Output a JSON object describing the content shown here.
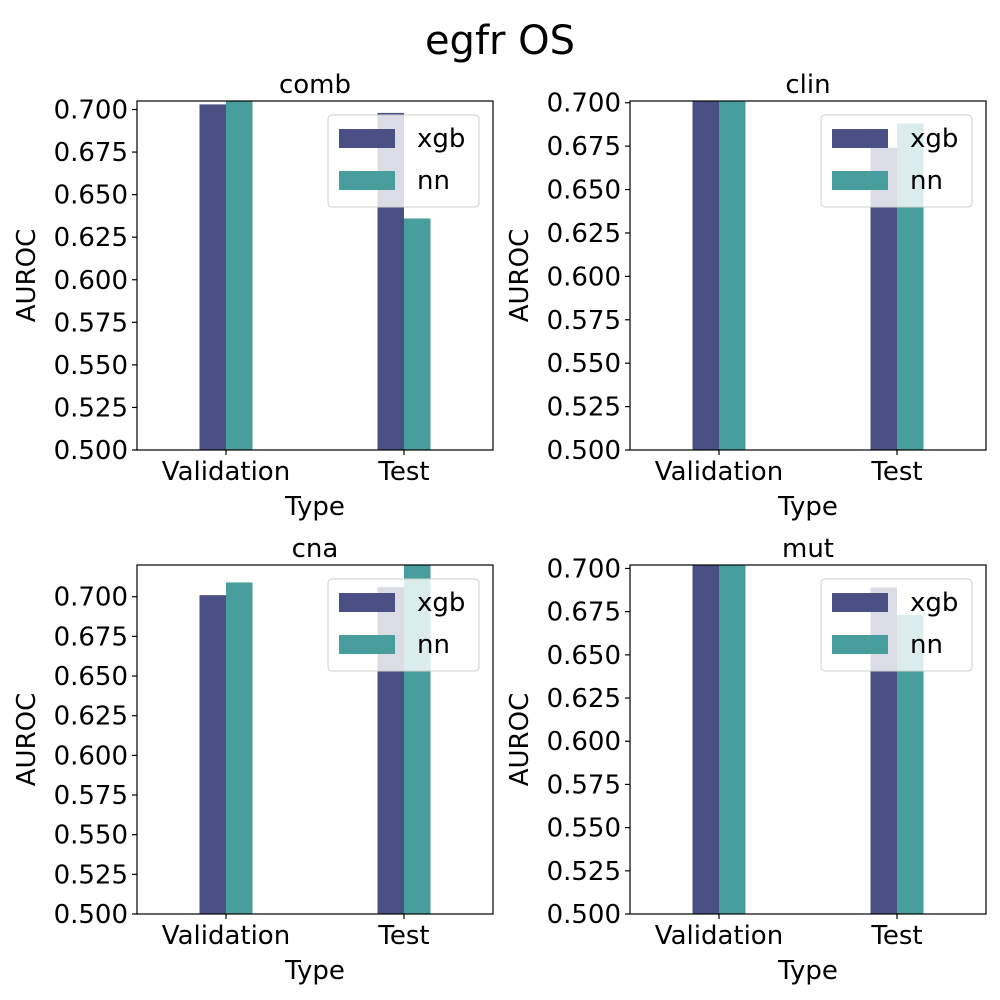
{
  "figure": {
    "title": "egfr OS"
  },
  "colors": {
    "xgb": "#4a5084",
    "nn": "#479e9c",
    "legend_border": "#cccccc",
    "axes": "#000000"
  },
  "chart_data": [
    {
      "type": "bar",
      "title": "comb",
      "xlabel": "Type",
      "ylabel": "AUROC",
      "categories": [
        "Validation",
        "Test"
      ],
      "series": [
        {
          "name": "xgb",
          "values": [
            0.703,
            0.698
          ]
        },
        {
          "name": "nn",
          "values": [
            0.705,
            0.636
          ]
        }
      ],
      "ylim": [
        0.5,
        0.705
      ],
      "yticks": [
        "0.500",
        "0.525",
        "0.550",
        "0.575",
        "0.600",
        "0.625",
        "0.650",
        "0.675",
        "0.700"
      ],
      "grid": false,
      "legend": "top-right"
    },
    {
      "type": "bar",
      "title": "clin",
      "xlabel": "Type",
      "ylabel": "AUROC",
      "categories": [
        "Validation",
        "Test"
      ],
      "series": [
        {
          "name": "xgb",
          "values": [
            0.703,
            0.674
          ]
        },
        {
          "name": "nn",
          "values": [
            0.703,
            0.688
          ]
        }
      ],
      "ylim": [
        0.5,
        0.701
      ],
      "yticks": [
        "0.500",
        "0.525",
        "0.550",
        "0.575",
        "0.600",
        "0.625",
        "0.650",
        "0.675",
        "0.700"
      ],
      "grid": false,
      "legend": "top-right"
    },
    {
      "type": "bar",
      "title": "cna",
      "xlabel": "Type",
      "ylabel": "AUROC",
      "categories": [
        "Validation",
        "Test"
      ],
      "series": [
        {
          "name": "xgb",
          "values": [
            0.701,
            0.706
          ]
        },
        {
          "name": "nn",
          "values": [
            0.709,
            0.72
          ]
        }
      ],
      "ylim": [
        0.5,
        0.72
      ],
      "yticks": [
        "0.500",
        "0.525",
        "0.550",
        "0.575",
        "0.600",
        "0.625",
        "0.650",
        "0.675",
        "0.700"
      ],
      "grid": false,
      "legend": "top-right"
    },
    {
      "type": "bar",
      "title": "mut",
      "xlabel": "Type",
      "ylabel": "AUROC",
      "categories": [
        "Validation",
        "Test"
      ],
      "series": [
        {
          "name": "xgb",
          "values": [
            0.705,
            0.689
          ]
        },
        {
          "name": "nn",
          "values": [
            0.705,
            0.673
          ]
        }
      ],
      "ylim": [
        0.5,
        0.702
      ],
      "yticks": [
        "0.500",
        "0.525",
        "0.550",
        "0.575",
        "0.600",
        "0.625",
        "0.650",
        "0.675",
        "0.700"
      ],
      "grid": false,
      "legend": "top-right"
    }
  ]
}
